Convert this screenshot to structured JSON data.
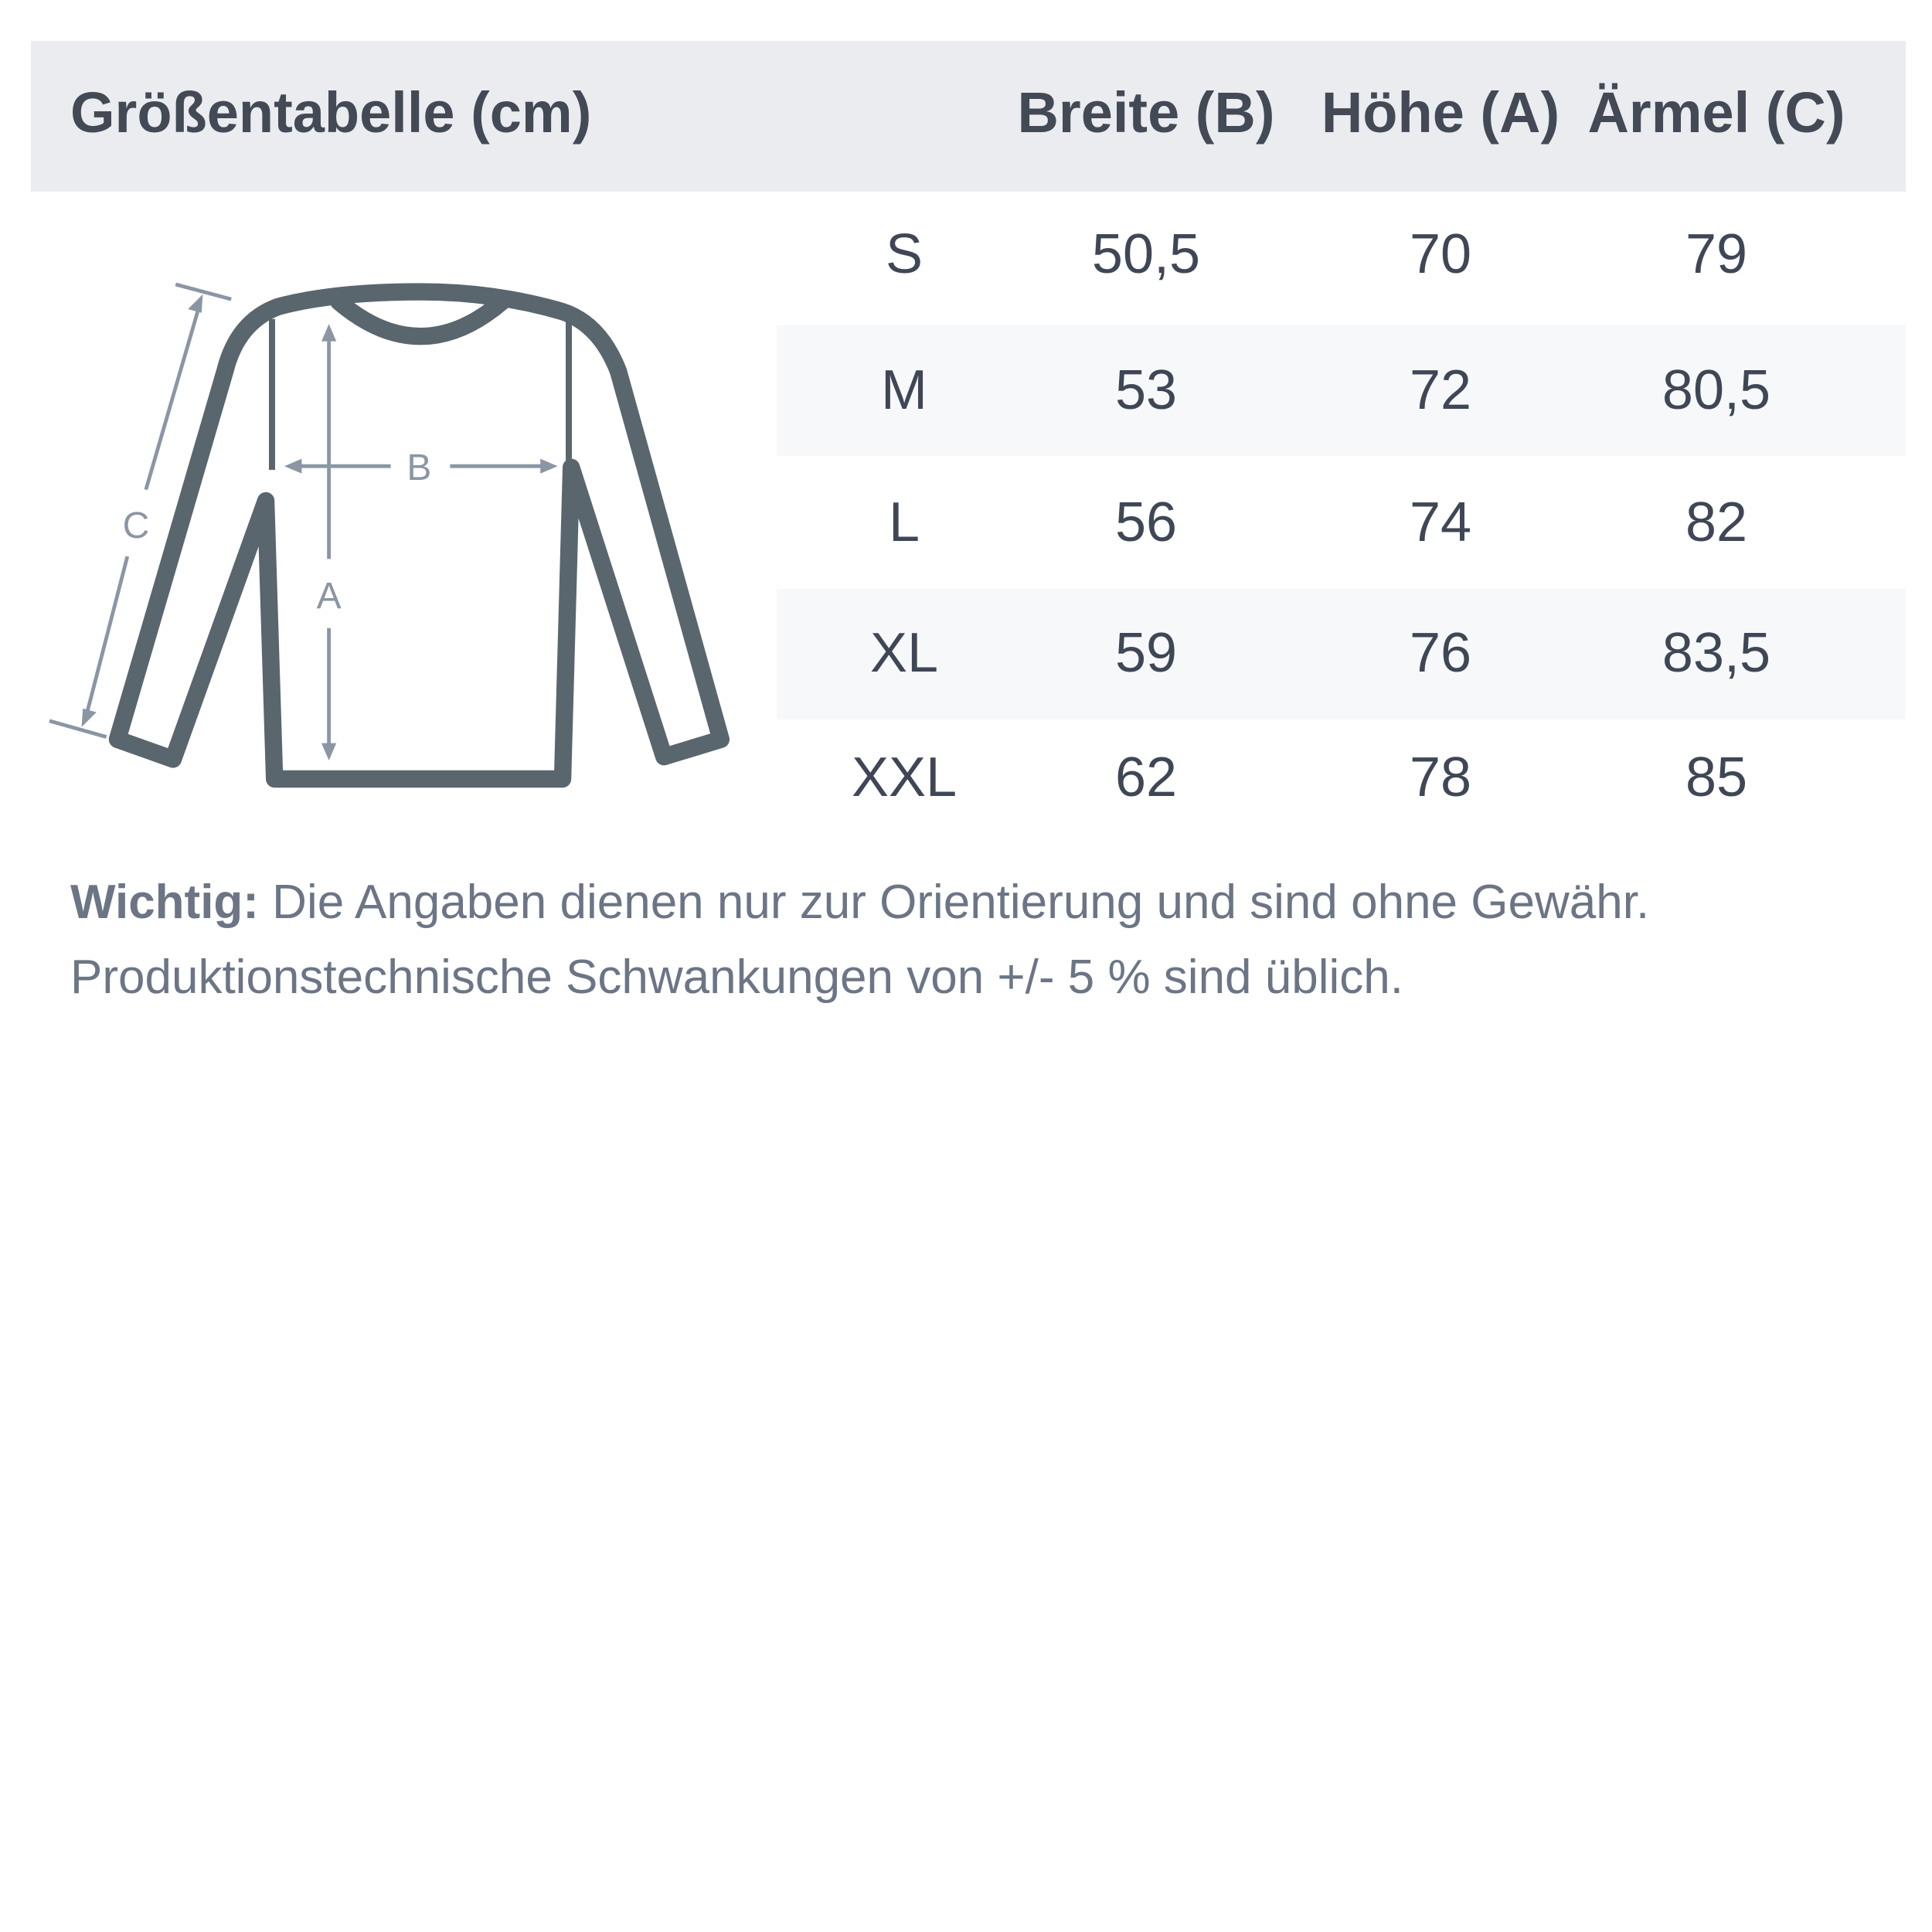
{
  "header": {
    "title": "Größentabelle (cm)",
    "columns": [
      "Breite (B)",
      "Höhe (A)",
      "Ärmel (C)"
    ]
  },
  "table": {
    "rows": [
      {
        "size": "S",
        "values": [
          "50,5",
          "70",
          "79"
        ]
      },
      {
        "size": "M",
        "values": [
          "53",
          "72",
          "80,5"
        ]
      },
      {
        "size": "L",
        "values": [
          "56",
          "74",
          "82"
        ]
      },
      {
        "size": "XL",
        "values": [
          "59",
          "76",
          "83,5"
        ]
      },
      {
        "size": "XXL",
        "values": [
          "62",
          "78",
          "85"
        ]
      }
    ]
  },
  "diagram": {
    "labels": {
      "a": "A",
      "b": "B",
      "c": "C"
    },
    "colors": {
      "outline": "#5a666d",
      "arrows": "#8a96a3"
    }
  },
  "note": {
    "bold": "Wichtig:",
    "line1": " Die Angaben dienen nur zur Orientierung und sind ohne Gewähr.",
    "line2": "Produktionstechnische Schwankungen von +/- 5 % sind üblich."
  },
  "colors": {
    "header_bg": "#eaecf0",
    "stripe_bg": "#f7f8fa",
    "text": "#434a56",
    "note_text": "#6b7585"
  }
}
